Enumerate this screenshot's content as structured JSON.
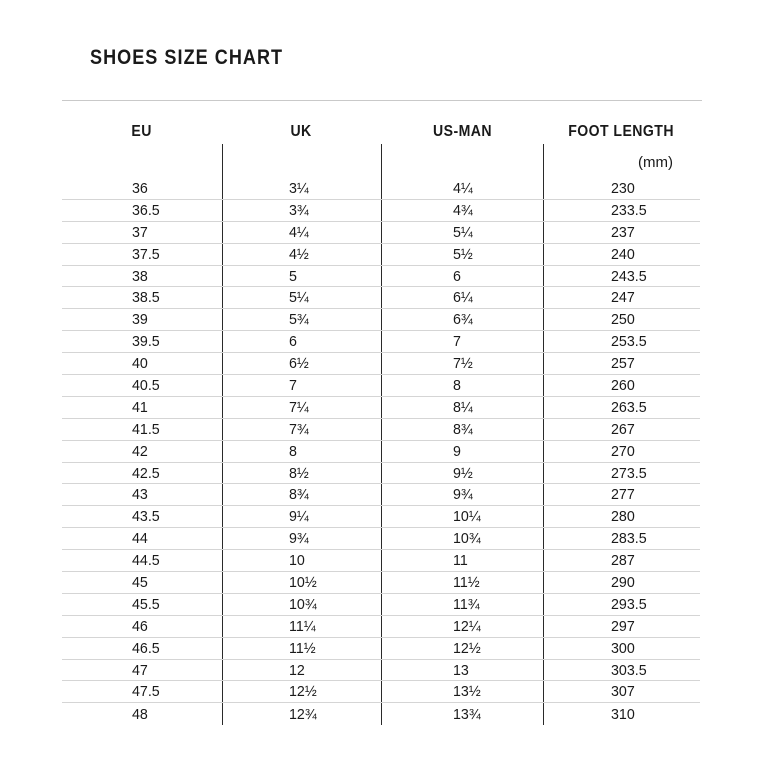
{
  "title": "SHOES SIZE CHART",
  "colors": {
    "background": "#ffffff",
    "text": "#1a1a1a",
    "divider": "#c9c9c9",
    "row_line": "#d5d5d5",
    "column_line": "#2a2a2a"
  },
  "chart_data": {
    "type": "table",
    "title": "SHOES SIZE CHART",
    "columns": [
      "EU",
      "UK",
      "US-MAN",
      "FOOT LENGTH"
    ],
    "unit_label": "(mm)",
    "rows": [
      [
        "36",
        "3¼",
        "4¼",
        "230"
      ],
      [
        "36.5",
        "3¾",
        "4¾",
        "233.5"
      ],
      [
        "37",
        "4¼",
        "5¼",
        "237"
      ],
      [
        "37.5",
        "4½",
        "5½",
        "240"
      ],
      [
        "38",
        "5",
        "6",
        "243.5"
      ],
      [
        "38.5",
        "5¼",
        "6¼",
        "247"
      ],
      [
        "39",
        "5¾",
        "6¾",
        "250"
      ],
      [
        "39.5",
        "6",
        "7",
        "253.5"
      ],
      [
        "40",
        "6½",
        "7½",
        "257"
      ],
      [
        "40.5",
        "7",
        "8",
        "260"
      ],
      [
        "41",
        "7¼",
        "8¼",
        "263.5"
      ],
      [
        "41.5",
        "7¾",
        "8¾",
        "267"
      ],
      [
        "42",
        "8",
        "9",
        "270"
      ],
      [
        "42.5",
        "8½",
        "9½",
        "273.5"
      ],
      [
        "43",
        "8¾",
        "9¾",
        "277"
      ],
      [
        "43.5",
        "9¼",
        "10¼",
        "280"
      ],
      [
        "44",
        "9¾",
        "10¾",
        "283.5"
      ],
      [
        "44.5",
        "10",
        "11",
        "287"
      ],
      [
        "45",
        "10½",
        "11½",
        "290"
      ],
      [
        "45.5",
        "10¾",
        "11¾",
        "293.5"
      ],
      [
        "46",
        "11¼",
        "12¼",
        "297"
      ],
      [
        "46.5",
        "11½",
        "12½",
        "300"
      ],
      [
        "47",
        "12",
        "13",
        "303.5"
      ],
      [
        "47.5",
        "12½",
        "13½",
        "307"
      ],
      [
        "48",
        "12¾",
        "13¾",
        "310"
      ]
    ]
  }
}
